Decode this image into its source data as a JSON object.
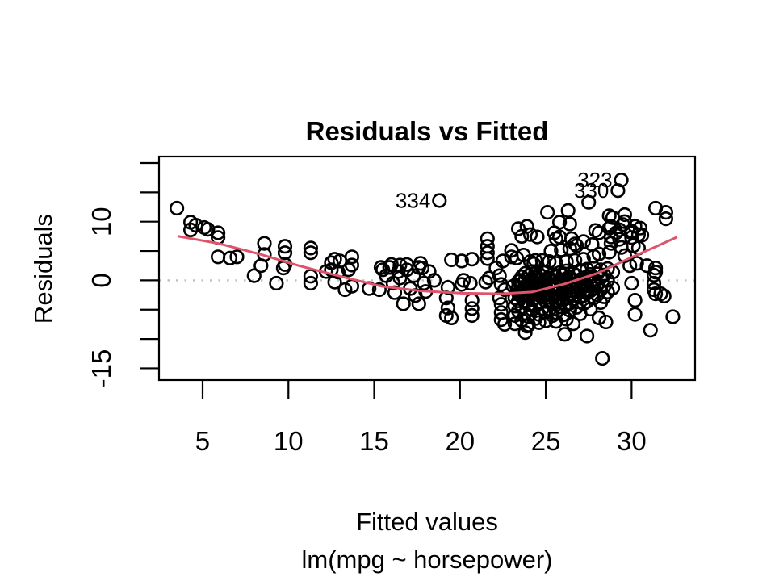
{
  "chart_data": {
    "type": "scatter",
    "title": "Residuals vs Fitted",
    "xlabel": "Fitted values",
    "subtitle": "lm(mpg ~ horsepower)",
    "ylabel": "Residuals",
    "xlim": [
      2.46,
      33.7
    ],
    "ylim": [
      -17.0,
      21.1
    ],
    "xticks": [
      5,
      10,
      15,
      20,
      25,
      30
    ],
    "yticks": [
      20,
      15,
      10,
      5,
      0,
      -5,
      -10,
      -15
    ],
    "ytick_labels_shown": [
      10,
      0,
      -15
    ],
    "grid": false,
    "legend": "none",
    "point_style": {
      "shape": "open-circle",
      "stroke": "#000000",
      "radius_px": 7.8
    },
    "colors": {
      "smooth_line": "#DF536B",
      "zero_line": "#BEBEBE",
      "axis": "#000000",
      "background": "#FFFFFF"
    },
    "zero_line_y": 0,
    "smooth_line": [
      [
        3.6,
        7.5
      ],
      [
        5.9,
        6.3
      ],
      [
        8.3,
        4.5
      ],
      [
        10.6,
        2.5
      ],
      [
        13.0,
        0.7
      ],
      [
        15.4,
        -1.0
      ],
      [
        17.7,
        -1.8
      ],
      [
        20.1,
        -2.2
      ],
      [
        22.4,
        -2.3
      ],
      [
        24.2,
        -2.0
      ],
      [
        26.1,
        -0.6
      ],
      [
        28.0,
        1.2
      ],
      [
        29.9,
        3.8
      ],
      [
        31.3,
        5.6
      ],
      [
        32.6,
        7.3
      ]
    ],
    "labeled_points": [
      {
        "label": "334",
        "x": 18.8,
        "y": 13.6
      },
      {
        "label": "323",
        "x": 29.4,
        "y": 17.1
      },
      {
        "label": "330",
        "x": 29.2,
        "y": 15.3
      }
    ],
    "points": [
      [
        3.5,
        12.3
      ],
      [
        4.3,
        9.9
      ],
      [
        4.3,
        8.6
      ],
      [
        4.6,
        9.4
      ],
      [
        5.1,
        9.0
      ],
      [
        5.3,
        8.7
      ],
      [
        5.9,
        8.1
      ],
      [
        5.9,
        7.3
      ],
      [
        5.9,
        4.0
      ],
      [
        6.6,
        3.8
      ],
      [
        7.0,
        4.0
      ],
      [
        8.4,
        2.5
      ],
      [
        8.6,
        6.3
      ],
      [
        8.6,
        4.4
      ],
      [
        9.7,
        2.1
      ],
      [
        9.8,
        5.8
      ],
      [
        9.8,
        4.7
      ],
      [
        9.8,
        2.7
      ],
      [
        8.0,
        0.8
      ],
      [
        9.3,
        -0.5
      ],
      [
        11.3,
        5.5
      ],
      [
        11.3,
        4.7
      ],
      [
        11.3,
        0.7
      ],
      [
        11.3,
        -0.5
      ],
      [
        12.2,
        1.5
      ],
      [
        12.5,
        3.0
      ],
      [
        12.5,
        1.8
      ],
      [
        12.7,
        3.6
      ],
      [
        12.7,
        -0.3
      ],
      [
        12.9,
        1.4
      ],
      [
        13.0,
        3.3
      ],
      [
        13.3,
        -1.6
      ],
      [
        13.5,
        1.8
      ],
      [
        13.7,
        4.0
      ],
      [
        13.7,
        2.6
      ],
      [
        13.7,
        -1.0
      ],
      [
        14.7,
        -1.4
      ],
      [
        15.3,
        -1.6
      ],
      [
        15.4,
        2.2
      ],
      [
        15.5,
        1.8
      ],
      [
        15.7,
        0.8
      ],
      [
        15.9,
        2.2
      ],
      [
        16.0,
        2.7
      ],
      [
        16.1,
        -0.5
      ],
      [
        16.2,
        -2.1
      ],
      [
        16.4,
        1.5
      ],
      [
        16.5,
        0.4
      ],
      [
        16.5,
        2.6
      ],
      [
        16.7,
        -4.0
      ],
      [
        16.9,
        2.7
      ],
      [
        16.9,
        1.8
      ],
      [
        17.1,
        -1.4
      ],
      [
        17.3,
        0.8
      ],
      [
        17.4,
        -2.6
      ],
      [
        17.6,
        -4.0
      ],
      [
        17.7,
        2.9
      ],
      [
        17.8,
        2.1
      ],
      [
        17.6,
        2.2
      ],
      [
        17.9,
        -0.5
      ],
      [
        18.0,
        -1.9
      ],
      [
        18.2,
        1.5
      ],
      [
        18.5,
        0.0
      ],
      [
        19.3,
        -1.2
      ],
      [
        19.2,
        -3.0
      ],
      [
        19.3,
        -4.7
      ],
      [
        19.2,
        -6.0
      ],
      [
        19.5,
        -6.4
      ],
      [
        20.1,
        3.3
      ],
      [
        20.7,
        3.6
      ],
      [
        19.5,
        3.5
      ],
      [
        21.6,
        7.1
      ],
      [
        21.6,
        5.8
      ],
      [
        21.6,
        4.7
      ],
      [
        21.6,
        3.7
      ],
      [
        22.5,
        3.3
      ],
      [
        23.0,
        5.1
      ],
      [
        23.0,
        4.0
      ],
      [
        23.4,
        8.8
      ],
      [
        20.1,
        -0.7
      ],
      [
        20.2,
        0.0
      ],
      [
        20.6,
        -0.5
      ],
      [
        20.7,
        -3.4
      ],
      [
        20.7,
        -4.8
      ],
      [
        20.7,
        -6.0
      ],
      [
        21.5,
        -0.3
      ],
      [
        21.7,
        0.4
      ],
      [
        22.1,
        2.1
      ],
      [
        22.3,
        0.8
      ],
      [
        22.4,
        -0.7
      ],
      [
        22.6,
        -1.6
      ],
      [
        22.3,
        -3.0
      ],
      [
        22.4,
        -4.1
      ],
      [
        22.4,
        -5.5
      ],
      [
        22.4,
        -6.7
      ],
      [
        22.6,
        -7.5
      ],
      [
        23.1,
        -1.0
      ],
      [
        23.2,
        -3.0
      ],
      [
        23.2,
        -4.4
      ],
      [
        23.2,
        -6.0
      ],
      [
        23.2,
        -7.4
      ],
      [
        23.5,
        0.0
      ],
      [
        23.5,
        -1.9
      ],
      [
        23.8,
        -8.9
      ],
      [
        23.9,
        -7.8
      ],
      [
        23.9,
        9.2
      ],
      [
        24.5,
        7.4
      ],
      [
        25.1,
        11.6
      ],
      [
        26.3,
        11.9
      ],
      [
        25.8,
        9.9
      ],
      [
        26.4,
        9.6
      ],
      [
        25.5,
        8.1
      ],
      [
        25.6,
        7.1
      ],
      [
        26.5,
        7.1
      ],
      [
        26.7,
        6.2
      ],
      [
        27.5,
        13.3
      ],
      [
        28.7,
        11.0
      ],
      [
        29.6,
        11.2
      ],
      [
        27.9,
        8.5
      ],
      [
        28.1,
        8.1
      ],
      [
        28.8,
        9.2
      ],
      [
        29.5,
        9.5
      ],
      [
        30.2,
        9.2
      ],
      [
        30.4,
        7.8
      ],
      [
        30.0,
        8.1
      ],
      [
        29.1,
        8.1
      ],
      [
        28.8,
        7.4
      ],
      [
        28.9,
        10.7
      ],
      [
        29.6,
        10.0
      ],
      [
        28.7,
        8.9
      ],
      [
        29.3,
        8.6
      ],
      [
        30.0,
        8.4
      ],
      [
        30.5,
        8.9
      ],
      [
        30.6,
        7.7
      ],
      [
        30.0,
        7.3
      ],
      [
        29.3,
        7.0
      ],
      [
        28.8,
        6.3
      ],
      [
        29.4,
        5.6
      ],
      [
        30.1,
        5.9
      ],
      [
        30.4,
        5.5
      ],
      [
        31.4,
        12.3
      ],
      [
        32.0,
        11.6
      ],
      [
        32.0,
        10.5
      ],
      [
        23.6,
        7.5
      ],
      [
        24.1,
        7.8
      ],
      [
        25.8,
        7.4
      ],
      [
        27.2,
        6.6
      ],
      [
        27.7,
        6.1
      ],
      [
        26.8,
        5.9
      ],
      [
        26.4,
        5.4
      ],
      [
        25.9,
        5.2
      ],
      [
        25.3,
        5.0
      ],
      [
        23.7,
        4.3
      ],
      [
        23.3,
        3.8
      ],
      [
        24.4,
        3.4
      ],
      [
        24.8,
        3.4
      ],
      [
        25.2,
        3.2
      ],
      [
        24.1,
        3.2
      ],
      [
        25.6,
        2.9
      ],
      [
        26.2,
        3.2
      ],
      [
        26.7,
        3.4
      ],
      [
        27.2,
        3.6
      ],
      [
        27.8,
        4.1
      ],
      [
        28.1,
        4.5
      ],
      [
        28.7,
        4.8
      ],
      [
        29.6,
        4.2
      ],
      [
        30.3,
        2.9
      ],
      [
        29.9,
        2.5
      ],
      [
        30.9,
        2.5
      ],
      [
        31.4,
        2.1
      ],
      [
        24.3,
        2.8
      ],
      [
        24.4,
        1.2
      ],
      [
        23.4,
        -0.2
      ],
      [
        23.4,
        -1.2
      ],
      [
        23.4,
        -2.2
      ],
      [
        23.4,
        -3.5
      ],
      [
        23.4,
        -5.2
      ],
      [
        23.6,
        0.6
      ],
      [
        23.6,
        -0.6
      ],
      [
        23.6,
        -1.8
      ],
      [
        23.6,
        -2.8
      ],
      [
        23.6,
        -4.6
      ],
      [
        23.6,
        -6.8
      ],
      [
        23.8,
        1.2
      ],
      [
        23.8,
        0.1
      ],
      [
        23.8,
        -1.0
      ],
      [
        23.8,
        -2.4
      ],
      [
        23.8,
        -3.8
      ],
      [
        23.8,
        -5.6
      ],
      [
        24.0,
        0.8
      ],
      [
        24.0,
        -0.3
      ],
      [
        24.0,
        -1.5
      ],
      [
        24.0,
        -2.6
      ],
      [
        24.0,
        -4.2
      ],
      [
        24.0,
        -6.2
      ],
      [
        24.0,
        -7.6
      ],
      [
        24.2,
        1.5
      ],
      [
        24.2,
        0.3
      ],
      [
        24.2,
        -0.9
      ],
      [
        24.2,
        -2.0
      ],
      [
        24.2,
        -3.3
      ],
      [
        24.2,
        -5.0
      ],
      [
        24.4,
        0.5
      ],
      [
        24.4,
        -0.8
      ],
      [
        24.4,
        -1.9
      ],
      [
        24.4,
        -3.0
      ],
      [
        24.4,
        -4.4
      ],
      [
        24.4,
        -6.5
      ],
      [
        24.6,
        1.1
      ],
      [
        24.6,
        -0.1
      ],
      [
        24.6,
        -1.3
      ],
      [
        24.6,
        -2.5
      ],
      [
        24.6,
        -3.9
      ],
      [
        24.6,
        -5.8
      ],
      [
        24.6,
        -7.2
      ],
      [
        24.8,
        0.7
      ],
      [
        24.8,
        -0.5
      ],
      [
        24.8,
        -1.6
      ],
      [
        24.8,
        -2.9
      ],
      [
        24.8,
        -4.8
      ],
      [
        25.0,
        1.4
      ],
      [
        25.0,
        0.2
      ],
      [
        25.0,
        -1.1
      ],
      [
        25.0,
        -2.3
      ],
      [
        25.0,
        -3.6
      ],
      [
        25.0,
        -5.4
      ],
      [
        25.0,
        -6.9
      ],
      [
        25.2,
        0.4
      ],
      [
        25.2,
        -0.7
      ],
      [
        25.2,
        -2.1
      ],
      [
        25.2,
        -3.4
      ],
      [
        25.2,
        -5.0
      ],
      [
        25.4,
        1.0
      ],
      [
        25.4,
        -0.2
      ],
      [
        25.4,
        -1.4
      ],
      [
        25.4,
        -2.7
      ],
      [
        25.4,
        -4.1
      ],
      [
        25.4,
        -6.0
      ],
      [
        25.6,
        0.6
      ],
      [
        25.6,
        -1.0
      ],
      [
        25.6,
        -2.2
      ],
      [
        25.6,
        -3.7
      ],
      [
        25.6,
        -5.5
      ],
      [
        25.6,
        -7.0
      ],
      [
        25.8,
        1.3
      ],
      [
        25.8,
        0.0
      ],
      [
        25.8,
        -1.7
      ],
      [
        25.8,
        -3.1
      ],
      [
        25.8,
        -4.5
      ],
      [
        26.0,
        0.9
      ],
      [
        26.0,
        -0.4
      ],
      [
        26.0,
        -1.9
      ],
      [
        26.0,
        -3.3
      ],
      [
        26.0,
        -5.9
      ],
      [
        26.2,
        1.6
      ],
      [
        26.2,
        0.3
      ],
      [
        26.2,
        -1.2
      ],
      [
        26.2,
        -2.8
      ],
      [
        26.2,
        -4.3
      ],
      [
        26.2,
        -6.6
      ],
      [
        26.4,
        0.5
      ],
      [
        26.4,
        -0.9
      ],
      [
        26.4,
        -2.4
      ],
      [
        26.4,
        -3.9
      ],
      [
        26.4,
        -5.1
      ],
      [
        26.6,
        1.2
      ],
      [
        26.6,
        -0.1
      ],
      [
        26.6,
        -1.6
      ],
      [
        26.6,
        -3.2
      ],
      [
        26.6,
        -7.4
      ],
      [
        26.8,
        0.8
      ],
      [
        26.8,
        -0.6
      ],
      [
        26.8,
        -2.0
      ],
      [
        26.8,
        -4.6
      ],
      [
        27.0,
        1.7
      ],
      [
        27.0,
        0.1
      ],
      [
        27.0,
        -1.3
      ],
      [
        27.0,
        -2.9
      ],
      [
        27.0,
        -5.7
      ],
      [
        27.2,
        0.4
      ],
      [
        27.2,
        -1.1
      ],
      [
        27.2,
        -2.6
      ],
      [
        27.2,
        -4.0
      ],
      [
        27.4,
        1.9
      ],
      [
        27.4,
        0.6
      ],
      [
        27.4,
        -0.8
      ],
      [
        27.4,
        -2.2
      ],
      [
        27.4,
        -3.6
      ],
      [
        27.6,
        1.0
      ],
      [
        27.6,
        -0.3
      ],
      [
        27.6,
        -1.8
      ],
      [
        27.6,
        -4.9
      ],
      [
        27.8,
        2.1
      ],
      [
        27.8,
        0.2
      ],
      [
        27.8,
        -1.4
      ],
      [
        27.8,
        -3.0
      ],
      [
        28.0,
        1.1
      ],
      [
        28.0,
        -0.7
      ],
      [
        28.0,
        -2.5
      ],
      [
        28.2,
        1.8
      ],
      [
        28.2,
        0.4
      ],
      [
        28.2,
        -1.6
      ],
      [
        28.2,
        -3.8
      ],
      [
        28.4,
        0.9
      ],
      [
        28.4,
        -1.0
      ],
      [
        28.4,
        -2.8
      ],
      [
        28.6,
        2.0
      ],
      [
        28.6,
        0.0
      ],
      [
        28.6,
        -2.0
      ],
      [
        28.9,
        1.4
      ],
      [
        28.9,
        -1.3
      ],
      [
        26.1,
        -9.2
      ],
      [
        27.4,
        -9.5
      ],
      [
        28.1,
        -6.4
      ],
      [
        28.5,
        -7.1
      ],
      [
        28.3,
        -13.3
      ],
      [
        30.0,
        -0.5
      ],
      [
        30.2,
        -3.4
      ],
      [
        30.2,
        -5.8
      ],
      [
        31.4,
        -2.3
      ],
      [
        31.9,
        -2.7
      ],
      [
        32.4,
        -6.2
      ],
      [
        31.1,
        -8.5
      ],
      [
        31.3,
        0.9
      ],
      [
        31.3,
        -0.5
      ],
      [
        31.3,
        -1.6
      ],
      [
        31.7,
        -2.3
      ],
      [
        31.4,
        1.4
      ]
    ]
  }
}
